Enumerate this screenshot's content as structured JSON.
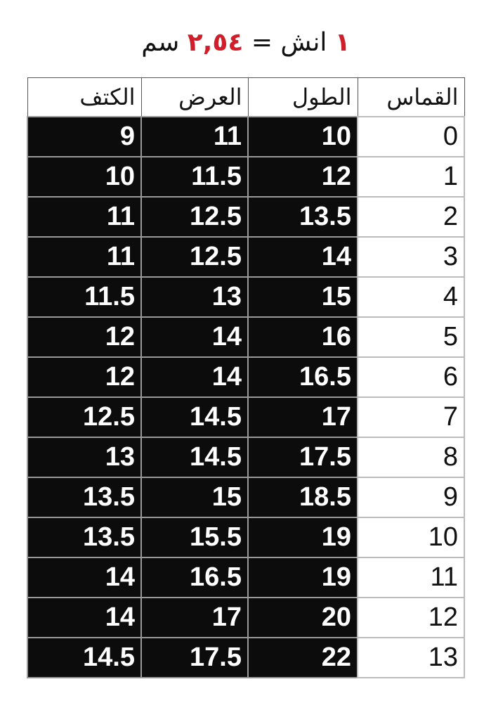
{
  "title": {
    "one": "١",
    "inch": " انش = ",
    "value": "٢,٥٤",
    "cm": " سم",
    "accent_color": "#d01f2a"
  },
  "headers": [
    "القماس",
    "الطول",
    "العرض",
    "الكتف"
  ],
  "rows": [
    [
      "0",
      "10",
      "11",
      "9"
    ],
    [
      "1",
      "12",
      "11.5",
      "10"
    ],
    [
      "2",
      "13.5",
      "12.5",
      "11"
    ],
    [
      "3",
      "14",
      "12.5",
      "11"
    ],
    [
      "4",
      "15",
      "13",
      "11.5"
    ],
    [
      "5",
      "16",
      "14",
      "12"
    ],
    [
      "6",
      "16.5",
      "14",
      "12"
    ],
    [
      "7",
      "17",
      "14.5",
      "12.5"
    ],
    [
      "8",
      "17.5",
      "14.5",
      "13"
    ],
    [
      "9",
      "18.5",
      "15",
      "13.5"
    ],
    [
      "10",
      "19",
      "15.5",
      "13.5"
    ],
    [
      "11",
      "19",
      "16.5",
      "14"
    ],
    [
      "12",
      "20",
      "17",
      "14"
    ],
    [
      "13",
      "22",
      "17.5",
      "14.5"
    ]
  ]
}
